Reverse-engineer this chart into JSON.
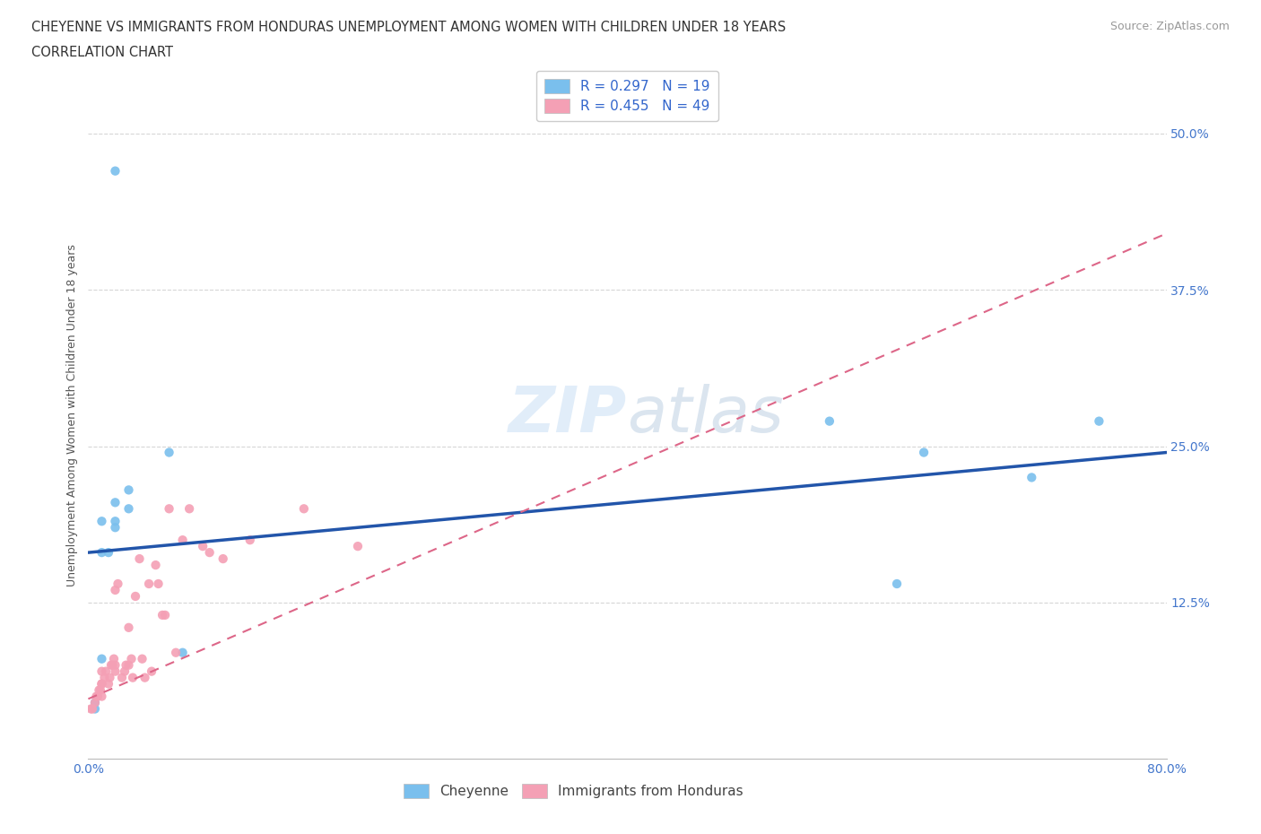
{
  "title_line1": "CHEYENNE VS IMMIGRANTS FROM HONDURAS UNEMPLOYMENT AMONG WOMEN WITH CHILDREN UNDER 18 YEARS",
  "title_line2": "CORRELATION CHART",
  "source_text": "Source: ZipAtlas.com",
  "ylabel": "Unemployment Among Women with Children Under 18 years",
  "xlim": [
    0.0,
    0.8
  ],
  "ylim": [
    0.0,
    0.55
  ],
  "yticks": [
    0.125,
    0.25,
    0.375,
    0.5
  ],
  "ytick_labels": [
    "12.5%",
    "25.0%",
    "37.5%",
    "50.0%"
  ],
  "cheyenne_color": "#7abfed",
  "honduras_color": "#f4a0b5",
  "cheyenne_line_color": "#2255aa",
  "honduras_line_color": "#dd6688",
  "R_cheyenne": 0.297,
  "N_cheyenne": 19,
  "R_honduras": 0.455,
  "N_honduras": 49,
  "watermark_zip": "ZIP",
  "watermark_atlas": "atlas",
  "background_color": "#ffffff",
  "grid_color": "#cccccc",
  "cheyenne_x": [
    0.02,
    0.02,
    0.03,
    0.02,
    0.03,
    0.01,
    0.02,
    0.015,
    0.01,
    0.01,
    0.005,
    0.005,
    0.06,
    0.07,
    0.55,
    0.6,
    0.62,
    0.7,
    0.75
  ],
  "cheyenne_y": [
    0.47,
    0.205,
    0.215,
    0.19,
    0.2,
    0.19,
    0.185,
    0.165,
    0.165,
    0.08,
    0.04,
    0.045,
    0.245,
    0.085,
    0.27,
    0.14,
    0.245,
    0.225,
    0.27
  ],
  "honduras_x": [
    0.002,
    0.003,
    0.005,
    0.006,
    0.007,
    0.008,
    0.009,
    0.01,
    0.01,
    0.01,
    0.01,
    0.012,
    0.013,
    0.015,
    0.016,
    0.017,
    0.018,
    0.019,
    0.02,
    0.02,
    0.02,
    0.022,
    0.025,
    0.027,
    0.028,
    0.03,
    0.03,
    0.032,
    0.033,
    0.035,
    0.038,
    0.04,
    0.042,
    0.045,
    0.047,
    0.05,
    0.052,
    0.055,
    0.057,
    0.06,
    0.065,
    0.07,
    0.075,
    0.085,
    0.09,
    0.1,
    0.12,
    0.16,
    0.2
  ],
  "honduras_y": [
    0.04,
    0.04,
    0.045,
    0.05,
    0.05,
    0.055,
    0.055,
    0.05,
    0.06,
    0.06,
    0.07,
    0.065,
    0.07,
    0.06,
    0.065,
    0.075,
    0.075,
    0.08,
    0.07,
    0.075,
    0.135,
    0.14,
    0.065,
    0.07,
    0.075,
    0.075,
    0.105,
    0.08,
    0.065,
    0.13,
    0.16,
    0.08,
    0.065,
    0.14,
    0.07,
    0.155,
    0.14,
    0.115,
    0.115,
    0.2,
    0.085,
    0.175,
    0.2,
    0.17,
    0.165,
    0.16,
    0.175,
    0.2,
    0.17
  ],
  "cheyenne_line_x0": 0.0,
  "cheyenne_line_y0": 0.165,
  "cheyenne_line_x1": 0.8,
  "cheyenne_line_y1": 0.245,
  "honduras_line_x0": 0.0,
  "honduras_line_y0": 0.048,
  "honduras_line_x1": 0.8,
  "honduras_line_y1": 0.42
}
